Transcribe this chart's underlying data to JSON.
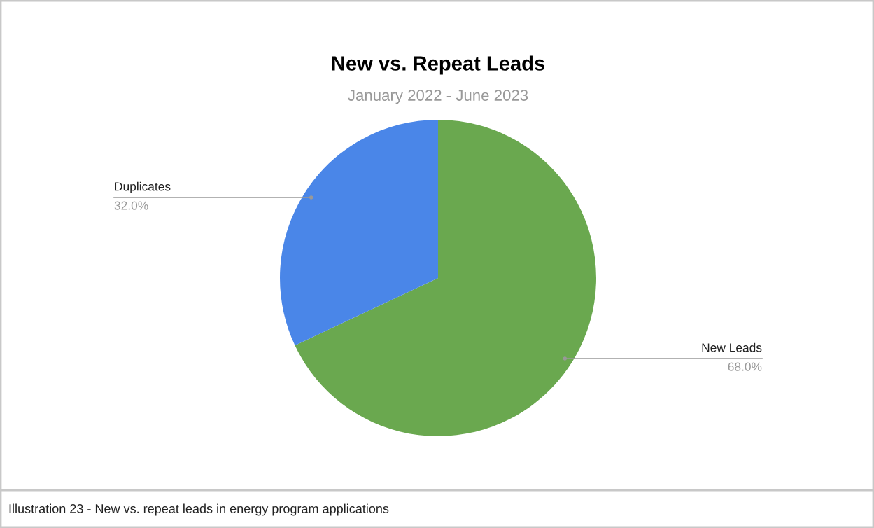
{
  "chart_data": {
    "type": "pie",
    "title": "New vs. Repeat Leads",
    "subtitle": "January 2022 - June 2023",
    "categories": [
      "New Leads",
      "Duplicates"
    ],
    "values": [
      68.0,
      32.0
    ],
    "colors": [
      "#6aa84f",
      "#4a86e8"
    ],
    "value_labels": [
      "68.0%",
      "32.0%"
    ],
    "legend": false,
    "annotations": [
      "Illustration 23 - New vs. repeat leads in energy program applications"
    ]
  }
}
